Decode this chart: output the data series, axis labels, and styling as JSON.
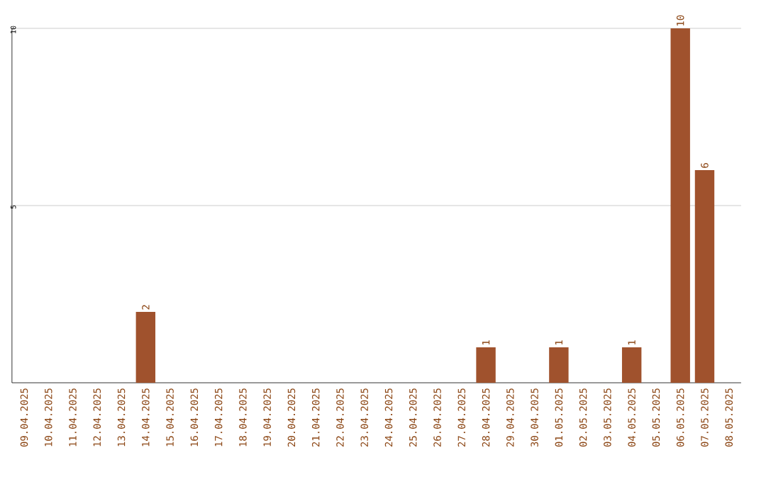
{
  "chart_data": {
    "type": "bar",
    "categories": [
      "09.04.2025",
      "10.04.2025",
      "11.04.2025",
      "12.04.2025",
      "13.04.2025",
      "14.04.2025",
      "15.04.2025",
      "16.04.2025",
      "17.04.2025",
      "18.04.2025",
      "19.04.2025",
      "20.04.2025",
      "21.04.2025",
      "22.04.2025",
      "23.04.2025",
      "24.04.2025",
      "25.04.2025",
      "26.04.2025",
      "27.04.2025",
      "28.04.2025",
      "29.04.2025",
      "30.04.2025",
      "01.05.2025",
      "02.05.2025",
      "03.05.2025",
      "04.05.2025",
      "05.05.2025",
      "06.05.2025",
      "07.05.2025",
      "08.05.2025"
    ],
    "values": [
      0,
      0,
      0,
      0,
      0,
      2,
      0,
      0,
      0,
      0,
      0,
      0,
      0,
      0,
      0,
      0,
      0,
      0,
      0,
      1,
      0,
      0,
      1,
      0,
      0,
      1,
      0,
      10,
      6,
      0
    ],
    "value_labels": [
      null,
      null,
      null,
      null,
      null,
      "2",
      null,
      null,
      null,
      null,
      null,
      null,
      null,
      null,
      null,
      null,
      null,
      null,
      null,
      "1",
      null,
      null,
      "1",
      null,
      null,
      "1",
      null,
      "10",
      "6",
      null
    ],
    "color": "#a0522d",
    "ylim": [
      0,
      10
    ],
    "yticks": [
      5,
      10
    ],
    "grid": "y"
  }
}
